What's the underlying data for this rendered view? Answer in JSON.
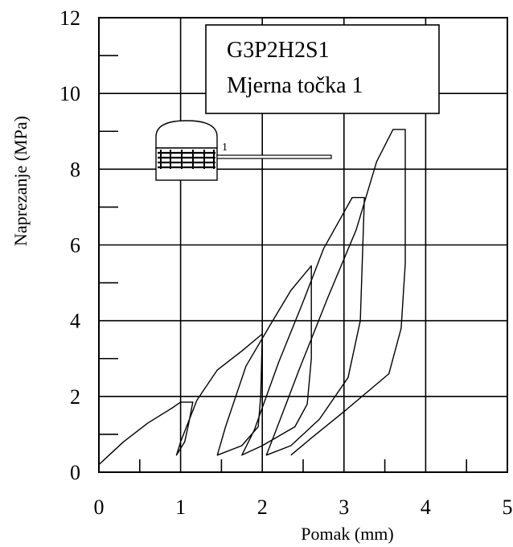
{
  "chart_data": {
    "type": "line",
    "xlabel": "Pomak (mm)",
    "ylabel": "Naprezanje (MPa)",
    "xlim": [
      0,
      5
    ],
    "ylim": [
      0,
      12
    ],
    "xticks": [
      "0",
      "1",
      "2",
      "3",
      "4",
      "5"
    ],
    "yticks": [
      "0",
      "2",
      "4",
      "6",
      "8",
      "10",
      "12"
    ],
    "grid": true,
    "legend_box": {
      "lines": [
        "G3P2H2S1",
        "Mjerna točka 1"
      ],
      "placement": "top-right"
    },
    "inset_label": "1",
    "series": [
      {
        "x": [
          0.0,
          0.3,
          0.6,
          0.9,
          1.0,
          1.15,
          1.1,
          1.05,
          0.95,
          1.0,
          1.2,
          1.45,
          1.75,
          2.0,
          1.98,
          1.95,
          1.75,
          1.45,
          1.55,
          1.8,
          2.1,
          2.35,
          2.6,
          2.6,
          2.55,
          2.4,
          2.0,
          1.75,
          1.9,
          2.2,
          2.5,
          2.75,
          3.1,
          3.25,
          3.2,
          3.05,
          2.7,
          2.35,
          2.05,
          2.15,
          2.45,
          2.8,
          3.15,
          3.4,
          3.6,
          3.75,
          3.75,
          3.7,
          3.55,
          3.0,
          2.6,
          2.35
        ],
        "y": [
          0.2,
          0.8,
          1.3,
          1.7,
          1.85,
          1.85,
          1.3,
          0.8,
          0.45,
          0.8,
          1.9,
          2.7,
          3.2,
          3.65,
          2.0,
          1.2,
          0.7,
          0.45,
          1.2,
          2.8,
          3.9,
          4.8,
          5.45,
          3.0,
          1.8,
          1.2,
          0.7,
          0.45,
          1.1,
          2.9,
          4.5,
          5.9,
          7.25,
          7.25,
          4.0,
          2.5,
          1.4,
          0.7,
          0.45,
          1.0,
          2.7,
          4.6,
          6.4,
          8.2,
          9.05,
          9.05,
          5.5,
          3.8,
          2.6,
          1.6,
          0.9,
          0.45
        ]
      }
    ]
  }
}
